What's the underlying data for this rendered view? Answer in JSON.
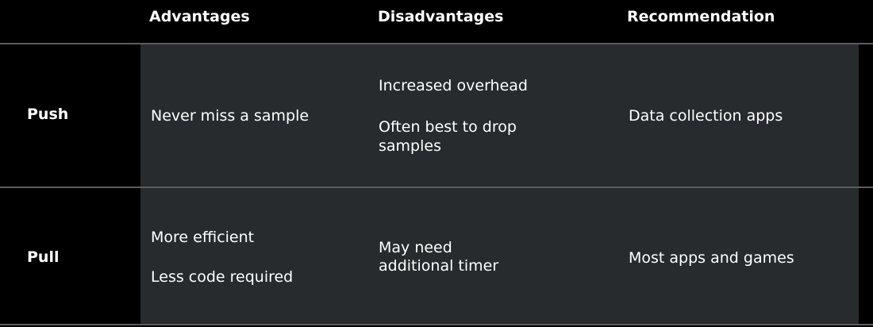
{
  "table": {
    "headers": {
      "advantages": "Advantages",
      "disadvantages": "Disadvantages",
      "recommendation": "Recommendation"
    },
    "rows": [
      {
        "label": "Push",
        "advantages": [
          "Never miss a sample"
        ],
        "disadvantages": [
          "Increased overhead",
          "Often best to drop",
          "samples"
        ],
        "recommendation": "Data collection apps"
      },
      {
        "label": "Pull",
        "advantages": [
          "More efficient",
          "Less code required"
        ],
        "disadvantages": [
          "May need",
          "additional timer"
        ],
        "recommendation": "Most apps and games"
      }
    ]
  },
  "colors": {
    "background": "#000000",
    "row_fill": "#272b2e",
    "divider": "#5a5d60",
    "text": "#ffffff"
  }
}
